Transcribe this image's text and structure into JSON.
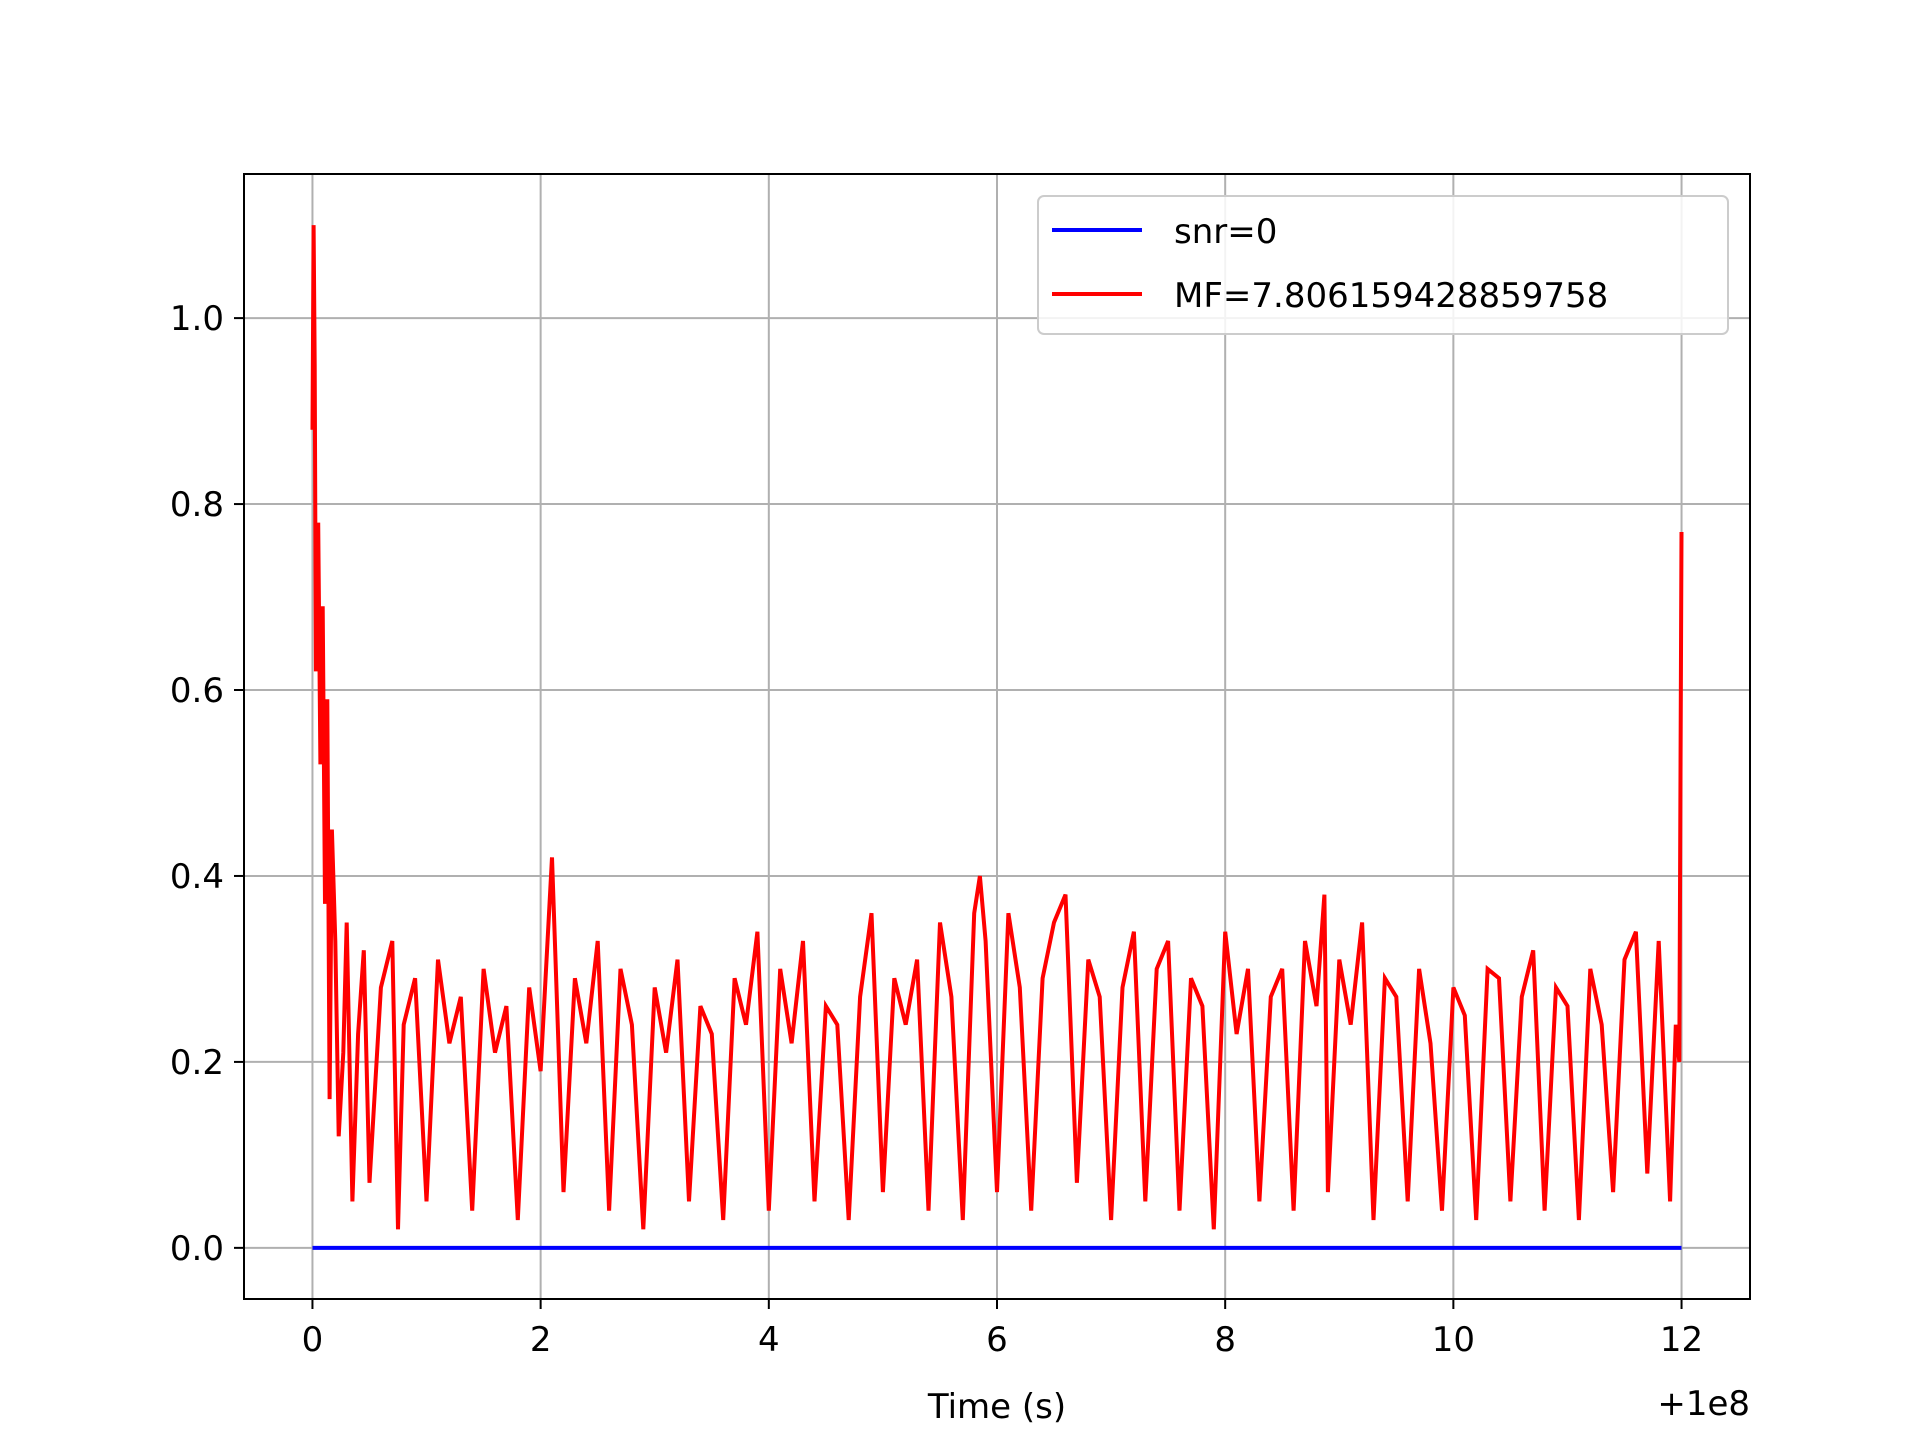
{
  "chart_data": {
    "type": "line",
    "title": "",
    "xlabel": "Time (s)",
    "ylabel": "",
    "x_offset_label": "+1e8",
    "xlim": [
      -0.6,
      12.6
    ],
    "ylim": [
      -0.055,
      1.155
    ],
    "xticks": [
      0,
      2,
      4,
      6,
      8,
      10,
      12
    ],
    "xtick_labels": [
      "0",
      "2",
      "4",
      "6",
      "8",
      "10",
      "12"
    ],
    "yticks": [
      0.0,
      0.2,
      0.4,
      0.6,
      0.8,
      1.0
    ],
    "ytick_labels": [
      "0.0",
      "0.2",
      "0.4",
      "0.6",
      "0.8",
      "1.0"
    ],
    "grid": true,
    "legend_position": "upper right",
    "series": [
      {
        "name": "snr=0",
        "color": "#0000ff",
        "x": [
          0,
          12
        ],
        "y": [
          0.0,
          0.0
        ]
      },
      {
        "name": "MF=7.806159428859758",
        "color": "#ff0000",
        "x": [
          0.0,
          0.01,
          0.02,
          0.03,
          0.05,
          0.07,
          0.09,
          0.11,
          0.13,
          0.15,
          0.17,
          0.2,
          0.23,
          0.27,
          0.3,
          0.35,
          0.4,
          0.45,
          0.5,
          0.6,
          0.7,
          0.75,
          0.8,
          0.9,
          1.0,
          1.1,
          1.2,
          1.3,
          1.4,
          1.5,
          1.6,
          1.7,
          1.8,
          1.9,
          2.0,
          2.1,
          2.2,
          2.3,
          2.4,
          2.5,
          2.6,
          2.7,
          2.8,
          2.9,
          3.0,
          3.1,
          3.2,
          3.3,
          3.4,
          3.5,
          3.6,
          3.7,
          3.8,
          3.9,
          4.0,
          4.1,
          4.2,
          4.3,
          4.4,
          4.5,
          4.6,
          4.7,
          4.8,
          4.9,
          5.0,
          5.1,
          5.2,
          5.3,
          5.4,
          5.5,
          5.6,
          5.7,
          5.8,
          5.85,
          5.9,
          6.0,
          6.1,
          6.2,
          6.3,
          6.4,
          6.5,
          6.6,
          6.7,
          6.8,
          6.9,
          7.0,
          7.1,
          7.2,
          7.3,
          7.4,
          7.5,
          7.6,
          7.7,
          7.8,
          7.9,
          8.0,
          8.1,
          8.2,
          8.3,
          8.4,
          8.5,
          8.6,
          8.7,
          8.8,
          8.87,
          8.9,
          9.0,
          9.1,
          9.2,
          9.3,
          9.4,
          9.5,
          9.6,
          9.7,
          9.8,
          9.9,
          10.0,
          10.1,
          10.2,
          10.3,
          10.4,
          10.5,
          10.6,
          10.7,
          10.8,
          10.9,
          11.0,
          11.1,
          11.2,
          11.3,
          11.4,
          11.5,
          11.6,
          11.7,
          11.8,
          11.9,
          11.95,
          11.98,
          12.0
        ],
        "y": [
          0.88,
          1.1,
          0.95,
          0.62,
          0.78,
          0.52,
          0.69,
          0.37,
          0.59,
          0.16,
          0.45,
          0.33,
          0.12,
          0.21,
          0.35,
          0.05,
          0.23,
          0.32,
          0.07,
          0.28,
          0.33,
          0.02,
          0.24,
          0.29,
          0.05,
          0.31,
          0.22,
          0.27,
          0.04,
          0.3,
          0.21,
          0.26,
          0.03,
          0.28,
          0.19,
          0.42,
          0.06,
          0.29,
          0.22,
          0.33,
          0.04,
          0.3,
          0.24,
          0.02,
          0.28,
          0.21,
          0.31,
          0.05,
          0.26,
          0.23,
          0.03,
          0.29,
          0.24,
          0.34,
          0.04,
          0.3,
          0.22,
          0.33,
          0.05,
          0.26,
          0.24,
          0.03,
          0.27,
          0.36,
          0.06,
          0.29,
          0.24,
          0.31,
          0.04,
          0.35,
          0.27,
          0.03,
          0.36,
          0.4,
          0.33,
          0.06,
          0.36,
          0.28,
          0.04,
          0.29,
          0.35,
          0.38,
          0.07,
          0.31,
          0.27,
          0.03,
          0.28,
          0.34,
          0.05,
          0.3,
          0.33,
          0.04,
          0.29,
          0.26,
          0.02,
          0.34,
          0.23,
          0.3,
          0.05,
          0.27,
          0.3,
          0.04,
          0.33,
          0.26,
          0.38,
          0.06,
          0.31,
          0.24,
          0.35,
          0.03,
          0.29,
          0.27,
          0.05,
          0.3,
          0.22,
          0.04,
          0.28,
          0.25,
          0.03,
          0.3,
          0.29,
          0.05,
          0.27,
          0.32,
          0.04,
          0.28,
          0.26,
          0.03,
          0.3,
          0.24,
          0.06,
          0.31,
          0.34,
          0.08,
          0.33,
          0.05,
          0.24,
          0.2,
          0.77
        ]
      }
    ]
  }
}
